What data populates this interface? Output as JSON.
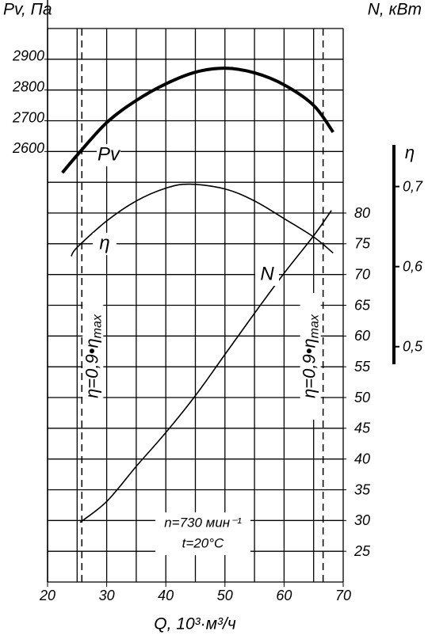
{
  "chart_data": {
    "type": "line",
    "ylabel": "Pv, Па",
    "y2label": "N, кВт",
    "y3label": "η",
    "xlabel": "Q, 10³·м³/ч",
    "xlim": [
      20,
      70
    ],
    "xticks": [
      20,
      30,
      40,
      50,
      60,
      70
    ],
    "ylim": [
      1200,
      3000
    ],
    "yticks": [
      2600,
      2700,
      2800,
      2900
    ],
    "y2lim": [
      20,
      110
    ],
    "y2ticks": [
      25,
      30,
      35,
      40,
      45,
      50,
      55,
      60,
      65,
      70,
      75,
      80
    ],
    "y3lim": [
      0.478,
      0.752
    ],
    "y3ticks": [
      {
        "value": 0.5,
        "label": "0,5"
      },
      {
        "value": 0.6,
        "label": "0,6"
      },
      {
        "value": 0.7,
        "label": "0,7"
      }
    ],
    "xgrid": [
      20,
      25,
      30,
      35,
      40,
      45,
      50,
      55,
      60,
      65,
      70
    ],
    "y2grid": [
      20,
      25,
      30,
      35,
      40,
      45,
      50,
      55,
      60,
      65,
      70,
      75,
      80,
      85,
      90,
      95,
      100,
      105,
      110
    ],
    "grid": true,
    "series": [
      {
        "name": "Pv",
        "color": "#000000",
        "axis": "y",
        "x": [
          22.5,
          25,
          30,
          35,
          40,
          45,
          50,
          55,
          60,
          65,
          68.3
        ],
        "values": [
          2531,
          2588,
          2694,
          2766,
          2820,
          2858,
          2871,
          2856,
          2817,
          2750,
          2663
        ]
      },
      {
        "name": "η",
        "color": "#000000",
        "axis": "y3",
        "x": [
          24,
          25,
          30,
          35,
          40,
          44,
          50,
          55,
          60,
          65,
          68.3
        ],
        "values": [
          0.613,
          0.624,
          0.657,
          0.682,
          0.698,
          0.703,
          0.697,
          0.682,
          0.66,
          0.637,
          0.617
        ]
      },
      {
        "name": "N",
        "color": "#000000",
        "axis": "y2",
        "x": [
          25.5,
          30,
          35,
          40,
          45,
          50,
          55,
          60,
          65,
          68
        ],
        "values": [
          29.7,
          33.1,
          38.8,
          44.3,
          50.3,
          57,
          63.7,
          70.2,
          76.3,
          80.4
        ]
      }
    ],
    "ref_lines": [
      {
        "x": 25.8,
        "label": "η=0,9•η",
        "sub": "max"
      },
      {
        "x": 66.6,
        "label": "η=0,9•η",
        "sub": "max"
      }
    ],
    "annotations": [
      "n=730 мин⁻¹",
      "t=20°C"
    ]
  }
}
